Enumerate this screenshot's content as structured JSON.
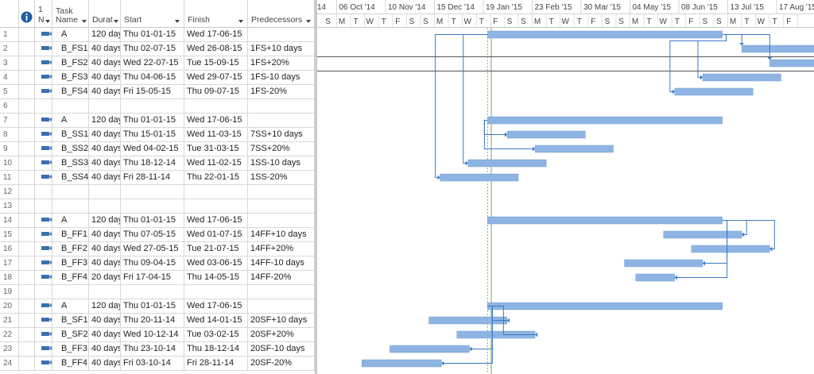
{
  "columns": {
    "indicators_label": "1",
    "mode_label": "1 ▌",
    "task_name_line1": "Task",
    "task_name_line2": "Name",
    "duration": "Durat",
    "start": "Start",
    "finish": "Finish",
    "predecessors": "Predecessors"
  },
  "rows": [
    {
      "id": "1",
      "name": "A",
      "duration": "120 day",
      "start": "Thu 01-01-15",
      "finish": "Wed 17-06-15",
      "pred": ""
    },
    {
      "id": "2",
      "name": "B_FS1",
      "duration": "40 days",
      "start": "Thu 02-07-15",
      "finish": "Wed 26-08-15",
      "pred": "1FS+10 days"
    },
    {
      "id": "3",
      "name": "B_FS2",
      "duration": "40 days",
      "start": "Wed 22-07-15",
      "finish": "Tue 15-09-15",
      "pred": "1FS+20%"
    },
    {
      "id": "4",
      "name": "B_FS3",
      "duration": "40 days",
      "start": "Thu 04-06-15",
      "finish": "Wed 29-07-15",
      "pred": "1FS-10 days"
    },
    {
      "id": "5",
      "name": "B_FS4",
      "duration": "40 days",
      "start": "Fri 15-05-15",
      "finish": "Thu 09-07-15",
      "pred": "1FS-20%"
    },
    {
      "id": "6",
      "name": "",
      "duration": "",
      "start": "",
      "finish": "",
      "pred": ""
    },
    {
      "id": "7",
      "name": "A",
      "duration": "120 day",
      "start": "Thu 01-01-15",
      "finish": "Wed 17-06-15",
      "pred": ""
    },
    {
      "id": "8",
      "name": "B_SS1",
      "duration": "40 days",
      "start": "Thu 15-01-15",
      "finish": "Wed 11-03-15",
      "pred": "7SS+10 days"
    },
    {
      "id": "9",
      "name": "B_SS2",
      "duration": "40 days",
      "start": "Wed 04-02-15",
      "finish": "Tue 31-03-15",
      "pred": "7SS+20%"
    },
    {
      "id": "10",
      "name": "B_SS3",
      "duration": "40 days",
      "start": "Thu 18-12-14",
      "finish": "Wed 11-02-15",
      "pred": "1SS-10 days"
    },
    {
      "id": "11",
      "name": "B_SS4",
      "duration": "40 days",
      "start": "Fri 28-11-14",
      "finish": "Thu 22-01-15",
      "pred": "1SS-20%"
    },
    {
      "id": "12",
      "name": "",
      "duration": "",
      "start": "",
      "finish": "",
      "pred": ""
    },
    {
      "id": "13",
      "name": "",
      "duration": "",
      "start": "",
      "finish": "",
      "pred": ""
    },
    {
      "id": "14",
      "name": "A",
      "duration": "120 day",
      "start": "Thu 01-01-15",
      "finish": "Wed 17-06-15",
      "pred": ""
    },
    {
      "id": "15",
      "name": "B_FF1",
      "duration": "40 days",
      "start": "Thu 07-05-15",
      "finish": "Wed 01-07-15",
      "pred": "14FF+10 days"
    },
    {
      "id": "16",
      "name": "B_FF2",
      "duration": "40 days",
      "start": "Wed 27-05-15",
      "finish": "Tue 21-07-15",
      "pred": "14FF+20%"
    },
    {
      "id": "17",
      "name": "B_FF3",
      "duration": "40 days",
      "start": "Thu 09-04-15",
      "finish": "Wed 03-06-15",
      "pred": "14FF-10 days"
    },
    {
      "id": "18",
      "name": "B_FF4",
      "duration": "20 days",
      "start": "Fri 17-04-15",
      "finish": "Thu 14-05-15",
      "pred": "14FF-20%"
    },
    {
      "id": "19",
      "name": "",
      "duration": "",
      "start": "",
      "finish": "",
      "pred": ""
    },
    {
      "id": "20",
      "name": "A",
      "duration": "120 day",
      "start": "Thu 01-01-15",
      "finish": "Wed 17-06-15",
      "pred": ""
    },
    {
      "id": "21",
      "name": "B_SF1",
      "duration": "40 days",
      "start": "Thu 20-11-14",
      "finish": "Wed 14-01-15",
      "pred": "20SF+10 days"
    },
    {
      "id": "22",
      "name": "B_SF2",
      "duration": "40 days",
      "start": "Wed 10-12-14",
      "finish": "Tue 03-02-15",
      "pred": "20SF+20%"
    },
    {
      "id": "23",
      "name": "B_FF3",
      "duration": "40 days",
      "start": "Thu 23-10-14",
      "finish": "Thu 18-12-14",
      "pred": "20SF-10 days"
    },
    {
      "id": "24",
      "name": "B_FF4",
      "duration": "40 days",
      "start": "Fri 03-10-14",
      "finish": "Fri 28-11-14",
      "pred": "20SF-20%"
    }
  ],
  "timescale": {
    "major": [
      "14",
      "06 Oct '14",
      "10 Nov '14",
      "15 Dec '14",
      "19 Jan '15",
      "23 Feb '15",
      "30 Mar '15",
      "04 May '15",
      "08 Jun '15",
      "13 Jul '15",
      "17 Aug '15"
    ],
    "minor": [
      "S",
      "M",
      "T",
      "W",
      "T",
      "F",
      "S",
      "S",
      "M",
      "T",
      "W",
      "T",
      "F",
      "S",
      "S",
      "M",
      "T",
      "W",
      "T",
      "F",
      "S",
      "S",
      "M",
      "T",
      "W",
      "T",
      "F",
      "S",
      "S",
      "M",
      "T",
      "W",
      "T",
      "F"
    ]
  },
  "colors": {
    "bar": "#8db4e2",
    "link": "#3a78c3",
    "today": "#70a860",
    "grid": "#d8d8d8"
  },
  "icons": {
    "info": "info-icon",
    "task_mode": "auto-schedule-icon"
  }
}
